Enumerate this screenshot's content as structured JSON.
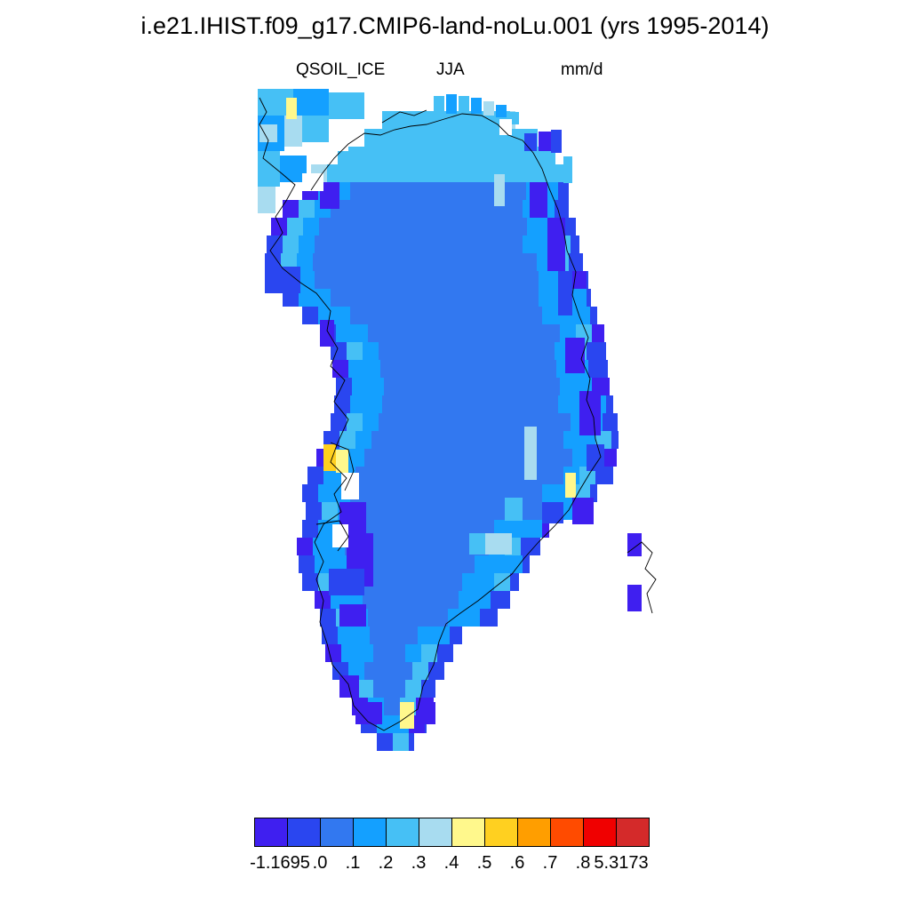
{
  "title": "i.e21.IHIST.f09_g17.CMIP6-land-noLu.001 (yrs 1995-2014)",
  "subtitles": {
    "variable": "QSOIL_ICE",
    "season": "JJA",
    "units": "mm/d"
  },
  "colorbar": {
    "colors": [
      "#3f1ff0",
      "#2a46f0",
      "#3278f0",
      "#14a0ff",
      "#46c0f5",
      "#a8dcf0",
      "#fff88c",
      "#ffd020",
      "#ff9e00",
      "#ff4b00",
      "#f00000",
      "#d42a2a"
    ],
    "labels": [
      "-1.1695",
      ".0",
      ".1",
      ".2",
      ".3",
      ".4",
      ".5",
      ".6",
      ".7",
      ".8",
      "5.3173"
    ]
  },
  "map": {
    "region": "Greenland",
    "field": "QSOIL_ICE",
    "class_colors": {
      "0": "#3f1ff0",
      "1": "#2a46f0",
      "2": "#3278f0",
      "3": "#14a0ff",
      "4": "#46c0f5",
      "5": "#a8dcf0",
      "6": "#fff88c",
      "7": "#ffd020"
    }
  }
}
